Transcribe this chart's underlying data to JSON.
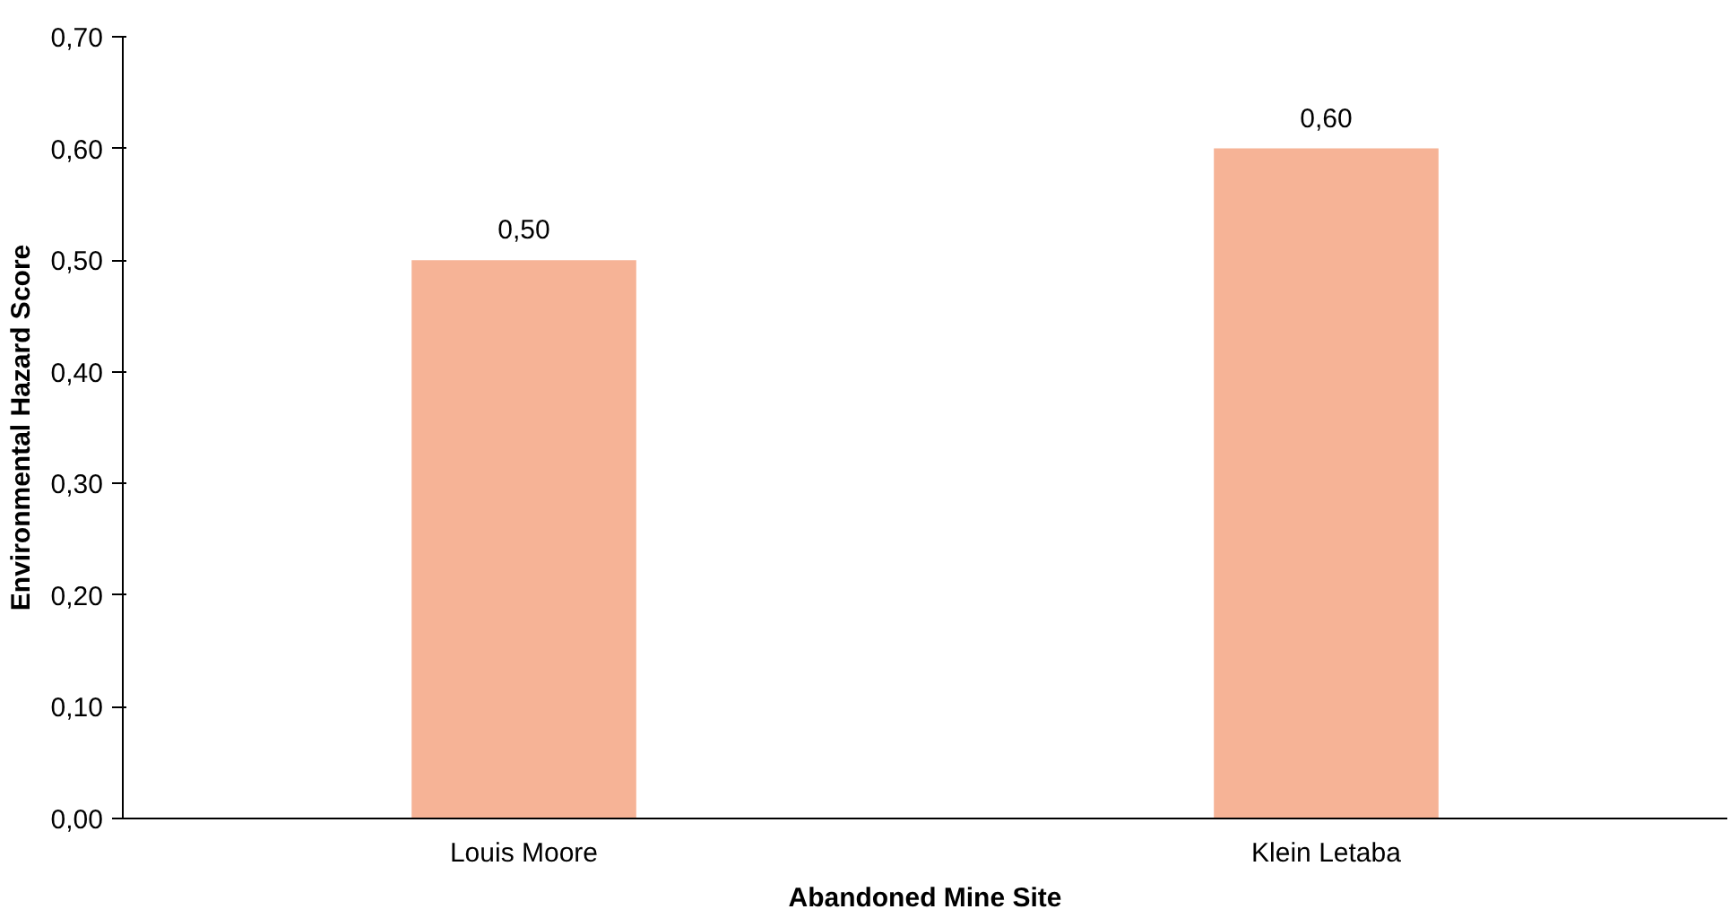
{
  "chart_data": {
    "type": "bar",
    "xlabel": "Abandoned Mine Site",
    "ylabel": "Environmental Hazard Score",
    "categories": [
      "Louis Moore",
      "Klein Letaba"
    ],
    "values": [
      0.5,
      0.6
    ],
    "color": "#f6b396",
    "value_labels": [
      "0,50",
      "0,60"
    ],
    "ylim": [
      0,
      0.7
    ],
    "yticks": [
      {
        "value": 0,
        "label": "0,00"
      },
      {
        "value": 0.1,
        "label": "0,10"
      },
      {
        "value": 0.2,
        "label": "0,20"
      },
      {
        "value": 0.3,
        "label": "0,30"
      },
      {
        "value": 0.4,
        "label": "0,40"
      },
      {
        "value": 0.5,
        "label": "0,50"
      },
      {
        "value": 0.6,
        "label": "0,60"
      },
      {
        "value": 0.7,
        "label": "0,70"
      }
    ],
    "grid": false
  }
}
